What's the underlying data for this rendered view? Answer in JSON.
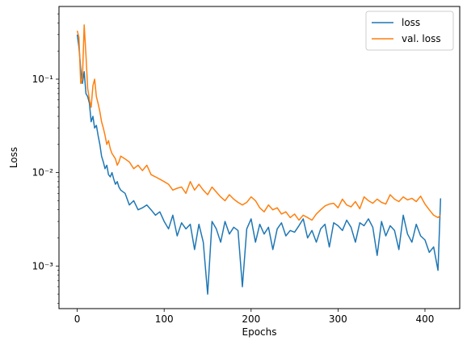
{
  "chart_data": {
    "type": "line",
    "title": "",
    "xlabel": "Epochs",
    "ylabel": "Loss",
    "xlim": [
      -21,
      440
    ],
    "ylim": [
      0.00035,
      0.6
    ],
    "yscale": "log",
    "grid": false,
    "legend_position": "top-right",
    "x_ticks": [
      0,
      100,
      200,
      300,
      400
    ],
    "x_tick_labels": [
      "0",
      "100",
      "200",
      "300",
      "400"
    ],
    "y_ticks": [
      0.001,
      0.01,
      0.1
    ],
    "y_tick_labels": [
      "10⁻³",
      "10⁻²",
      "10⁻¹"
    ],
    "series": [
      {
        "name": "loss",
        "color": "#1f77b4",
        "x": [
          0,
          2,
          4,
          6,
          8,
          10,
          12,
          14,
          16,
          18,
          20,
          22,
          24,
          26,
          28,
          30,
          32,
          34,
          36,
          38,
          40,
          42,
          44,
          46,
          48,
          50,
          55,
          60,
          65,
          70,
          75,
          80,
          85,
          90,
          95,
          100,
          105,
          110,
          115,
          120,
          125,
          130,
          135,
          140,
          145,
          150,
          155,
          160,
          165,
          170,
          175,
          180,
          185,
          190,
          195,
          200,
          205,
          210,
          215,
          220,
          225,
          230,
          235,
          240,
          245,
          250,
          255,
          260,
          265,
          270,
          275,
          280,
          285,
          290,
          295,
          300,
          305,
          310,
          315,
          320,
          325,
          330,
          335,
          340,
          345,
          350,
          355,
          360,
          365,
          370,
          375,
          380,
          385,
          390,
          395,
          400,
          405,
          410,
          415,
          418
        ],
        "y": [
          0.3,
          0.22,
          0.13,
          0.09,
          0.12,
          0.07,
          0.065,
          0.055,
          0.035,
          0.04,
          0.03,
          0.032,
          0.025,
          0.02,
          0.015,
          0.013,
          0.011,
          0.012,
          0.0095,
          0.009,
          0.01,
          0.0085,
          0.0075,
          0.008,
          0.007,
          0.0065,
          0.006,
          0.0045,
          0.005,
          0.004,
          0.0042,
          0.0045,
          0.004,
          0.0035,
          0.0038,
          0.003,
          0.0025,
          0.0035,
          0.0021,
          0.0029,
          0.0025,
          0.0028,
          0.0015,
          0.0028,
          0.0018,
          0.0005,
          0.003,
          0.0025,
          0.0018,
          0.003,
          0.0022,
          0.0026,
          0.0024,
          0.0006,
          0.0025,
          0.0032,
          0.0018,
          0.0028,
          0.0022,
          0.0026,
          0.0015,
          0.0025,
          0.0029,
          0.0021,
          0.0024,
          0.0023,
          0.0027,
          0.0032,
          0.002,
          0.0024,
          0.0018,
          0.0025,
          0.0028,
          0.0016,
          0.0029,
          0.0027,
          0.0024,
          0.0031,
          0.0026,
          0.0018,
          0.0029,
          0.0027,
          0.0032,
          0.0026,
          0.0013,
          0.003,
          0.0021,
          0.0027,
          0.0024,
          0.0015,
          0.0035,
          0.0022,
          0.0018,
          0.0028,
          0.0021,
          0.0019,
          0.0014,
          0.0016,
          0.0009,
          0.0053
        ]
      },
      {
        "name": "val. loss",
        "color": "#ff7f0e",
        "x": [
          0,
          2,
          4,
          6,
          8,
          10,
          12,
          14,
          16,
          18,
          20,
          22,
          24,
          26,
          28,
          30,
          32,
          34,
          36,
          38,
          40,
          42,
          44,
          46,
          48,
          50,
          55,
          60,
          65,
          70,
          75,
          80,
          85,
          90,
          95,
          100,
          105,
          110,
          115,
          120,
          125,
          130,
          135,
          140,
          145,
          150,
          155,
          160,
          165,
          170,
          175,
          180,
          185,
          190,
          195,
          200,
          205,
          210,
          215,
          220,
          225,
          230,
          235,
          240,
          245,
          250,
          255,
          260,
          265,
          270,
          275,
          280,
          285,
          290,
          295,
          300,
          305,
          310,
          315,
          320,
          325,
          330,
          335,
          340,
          345,
          350,
          355,
          360,
          365,
          370,
          375,
          380,
          385,
          390,
          395,
          400,
          405,
          410,
          415,
          418
        ],
        "y": [
          0.33,
          0.28,
          0.09,
          0.1,
          0.38,
          0.18,
          0.08,
          0.06,
          0.05,
          0.085,
          0.1,
          0.065,
          0.055,
          0.045,
          0.035,
          0.03,
          0.025,
          0.02,
          0.022,
          0.018,
          0.016,
          0.015,
          0.014,
          0.012,
          0.013,
          0.015,
          0.014,
          0.013,
          0.011,
          0.012,
          0.0105,
          0.012,
          0.0095,
          0.009,
          0.0085,
          0.008,
          0.0075,
          0.0065,
          0.0068,
          0.007,
          0.006,
          0.008,
          0.0065,
          0.0075,
          0.0065,
          0.0058,
          0.007,
          0.0062,
          0.0055,
          0.005,
          0.0058,
          0.0052,
          0.0048,
          0.0045,
          0.0048,
          0.0055,
          0.005,
          0.0042,
          0.0038,
          0.0045,
          0.004,
          0.0042,
          0.0036,
          0.0038,
          0.0033,
          0.0036,
          0.0031,
          0.0035,
          0.0033,
          0.0031,
          0.0036,
          0.004,
          0.0044,
          0.0046,
          0.0047,
          0.0042,
          0.0052,
          0.0045,
          0.0043,
          0.0049,
          0.0041,
          0.0055,
          0.005,
          0.0047,
          0.0052,
          0.0048,
          0.0046,
          0.0058,
          0.0052,
          0.0049,
          0.0055,
          0.0051,
          0.0053,
          0.0049,
          0.0056,
          0.0046,
          0.004,
          0.0035,
          0.0033,
          0.0035
        ]
      }
    ]
  }
}
